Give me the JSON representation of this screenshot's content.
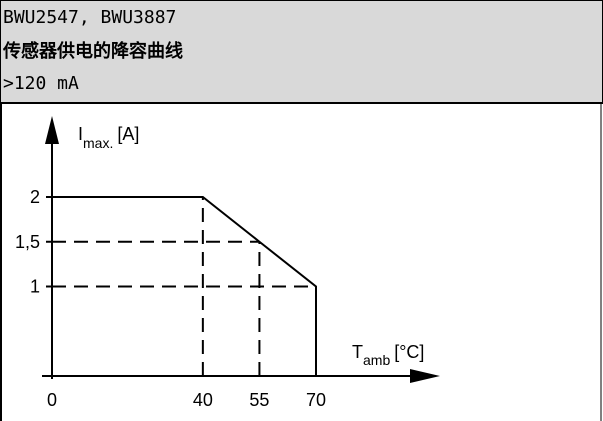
{
  "header": {
    "line1": "BWU2547, BWU3887",
    "line2": "传感器供电的降容曲线",
    "line3": ">120 mA"
  },
  "chart_data": {
    "type": "line",
    "title": "",
    "xlabel_main": "T",
    "xlabel_sub": "amb",
    "xlabel_unit": "[°C]",
    "ylabel_main": "I",
    "ylabel_sub": "max.",
    "ylabel_unit": "[A]",
    "x_ticks": [
      "0",
      "40",
      "55",
      "70"
    ],
    "x_tick_values": [
      0,
      40,
      55,
      70
    ],
    "y_ticks": [
      "2",
      "1,5",
      "1"
    ],
    "y_tick_values": [
      2,
      1.5,
      1
    ],
    "xlim": [
      0,
      85
    ],
    "ylim": [
      0,
      2.55
    ],
    "series": [
      {
        "values_x": [
          0,
          40,
          55,
          70,
          70
        ],
        "values_y": [
          2,
          2,
          1.5,
          1,
          0
        ]
      }
    ],
    "guides": [
      {
        "x": [
          40,
          40
        ],
        "y": [
          0,
          2
        ]
      },
      {
        "x": [
          55,
          55
        ],
        "y": [
          0,
          1.5
        ]
      },
      {
        "x": [
          0,
          55
        ],
        "y": [
          1.5,
          1.5
        ]
      },
      {
        "x": [
          0,
          70
        ],
        "y": [
          1,
          1
        ]
      }
    ],
    "grid": false,
    "legend": "none"
  }
}
